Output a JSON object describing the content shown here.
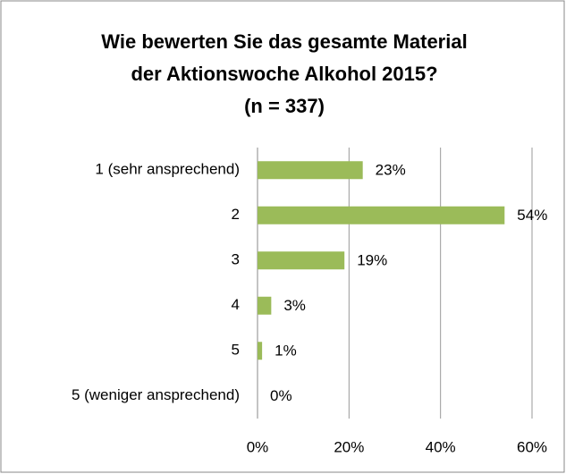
{
  "chart_data": {
    "type": "bar",
    "orientation": "horizontal",
    "title": [
      "Wie bewerten Sie das gesamte Material",
      "der Aktionswoche Alkohol 2015?",
      "(n = 337)"
    ],
    "categories": [
      "1 (sehr ansprechend)",
      "2",
      "3",
      "4",
      "5",
      "5 (weniger ansprechend)"
    ],
    "values": [
      23,
      54,
      19,
      3,
      1,
      0
    ],
    "value_labels": [
      "23%",
      "54%",
      "19%",
      "3%",
      "1%",
      "0%"
    ],
    "color": "#9bbb59",
    "xlim": [
      0,
      60
    ],
    "xticks": [
      {
        "value": 0,
        "label": "0%"
      },
      {
        "value": 20,
        "label": "20%"
      },
      {
        "value": 40,
        "label": "40%"
      },
      {
        "value": 60,
        "label": "60%"
      }
    ],
    "grid": true
  }
}
